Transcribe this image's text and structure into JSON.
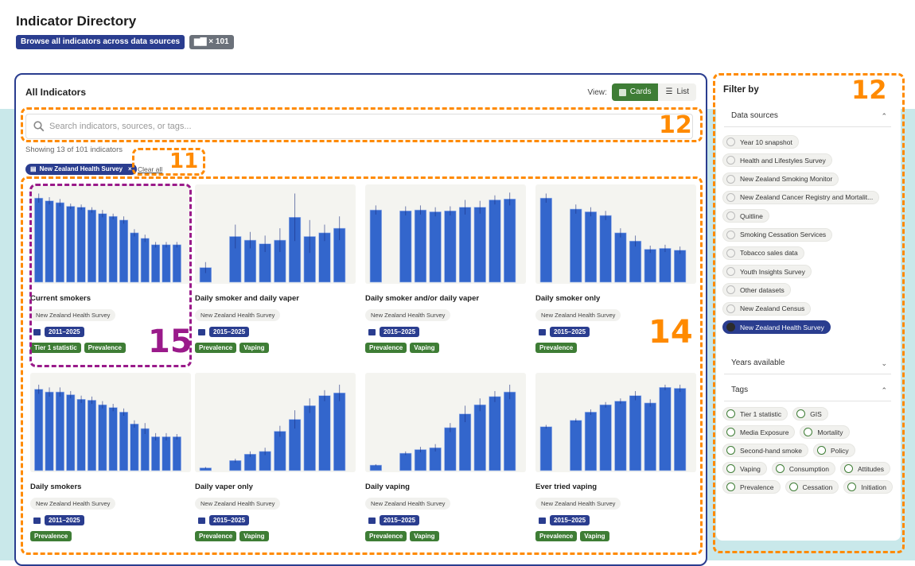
{
  "header": {
    "title": "Indicator Directory",
    "subtitle_badge": "Browse all indicators across data sources",
    "count_badge": "× 101",
    "count_icon": "bar-chart-icon"
  },
  "main": {
    "title": "All Indicators",
    "view_label": "View:",
    "view_cards": "Cards",
    "view_list": "List",
    "view_selected": "Cards",
    "search_placeholder": "Search indicators, sources, or tags...",
    "search_value": "",
    "showing": "Showing 13 of 101 indicators",
    "active_filter": "New Zealand Health Survey",
    "clear_all": "Clear all"
  },
  "cards": [
    {
      "title": "Current smokers",
      "source": "New Zealand Health Survey",
      "years": "2011–2025",
      "tags": [
        "Tier 1 statistic",
        "Prevalence"
      ]
    },
    {
      "title": "Daily smoker and daily vaper",
      "source": "New Zealand Health Survey",
      "years": "2015–2025",
      "tags": [
        "Prevalence",
        "Vaping"
      ]
    },
    {
      "title": "Daily smoker and/or daily vaper",
      "source": "New Zealand Health Survey",
      "years": "2015–2025",
      "tags": [
        "Prevalence",
        "Vaping"
      ]
    },
    {
      "title": "Daily smoker only",
      "source": "New Zealand Health Survey",
      "years": "2015–2025",
      "tags": [
        "Prevalence"
      ]
    },
    {
      "title": "Daily smokers",
      "source": "New Zealand Health Survey",
      "years": "2011–2025",
      "tags": [
        "Prevalence"
      ]
    },
    {
      "title": "Daily vaper only",
      "source": "New Zealand Health Survey",
      "years": "2015–2025",
      "tags": [
        "Prevalence",
        "Vaping"
      ]
    },
    {
      "title": "Daily vaping",
      "source": "New Zealand Health Survey",
      "years": "2015–2025",
      "tags": [
        "Prevalence",
        "Vaping"
      ]
    },
    {
      "title": "Ever tried vaping",
      "source": "New Zealand Health Survey",
      "years": "2015–2025",
      "tags": [
        "Prevalence",
        "Vaping"
      ]
    }
  ],
  "chart_data": [
    {
      "type": "bar",
      "bar_color": "#3366cc",
      "values": [
        92,
        89,
        87,
        83,
        82,
        79,
        75,
        72,
        68,
        54,
        48,
        41,
        41,
        41
      ],
      "errors": [
        5,
        4,
        4,
        3,
        3,
        3,
        4,
        3,
        4,
        4,
        4,
        3,
        3,
        3
      ]
    },
    {
      "type": "bar",
      "bar_color": "#3366cc",
      "values": [
        16,
        null,
        50,
        46,
        42,
        46,
        71,
        50,
        54,
        59
      ],
      "errors": [
        6,
        null,
        13,
        9,
        9,
        13,
        26,
        18,
        9,
        13
      ]
    },
    {
      "type": "bar",
      "bar_color": "#3366cc",
      "values": [
        79,
        null,
        78,
        79,
        77,
        78,
        82,
        82,
        90,
        91
      ],
      "errors": [
        5,
        null,
        5,
        5,
        5,
        5,
        8,
        7,
        5,
        7
      ]
    },
    {
      "type": "bar",
      "bar_color": "#3366cc",
      "values": [
        92,
        null,
        80,
        77,
        73,
        54,
        45,
        36,
        37,
        35
      ],
      "errors": [
        5,
        null,
        5,
        5,
        5,
        5,
        6,
        4,
        4,
        4
      ]
    },
    {
      "type": "bar",
      "bar_color": "#3366cc",
      "values": [
        89,
        86,
        86,
        83,
        78,
        77,
        72,
        69,
        64,
        51,
        46,
        37,
        37,
        37
      ],
      "errors": [
        5,
        5,
        5,
        4,
        4,
        4,
        4,
        4,
        4,
        4,
        6,
        4,
        4,
        3
      ]
    },
    {
      "type": "bar",
      "bar_color": "#3366cc",
      "values": [
        3,
        null,
        11,
        18,
        21,
        43,
        56,
        71,
        82,
        85
      ],
      "errors": [
        1,
        null,
        2,
        3,
        4,
        6,
        10,
        8,
        6,
        9
      ]
    },
    {
      "type": "bar",
      "bar_color": "#3366cc",
      "values": [
        6,
        null,
        19,
        23,
        25,
        47,
        62,
        72,
        81,
        86
      ],
      "errors": [
        1,
        null,
        2,
        3,
        4,
        5,
        9,
        7,
        6,
        8
      ]
    },
    {
      "type": "bar",
      "bar_color": "#3366cc",
      "values": [
        48,
        null,
        55,
        64,
        72,
        76,
        82,
        74,
        91,
        90
      ],
      "errors": [
        2,
        null,
        2,
        3,
        3,
        3,
        5,
        4,
        3,
        4
      ]
    }
  ],
  "sidebar": {
    "title": "Filter by",
    "data_sources_label": "Data sources",
    "years_label": "Years available",
    "tags_label": "Tags",
    "data_sources": [
      {
        "label": "Year 10 snapshot",
        "selected": false
      },
      {
        "label": "Health and Lifestyles Survey",
        "selected": false
      },
      {
        "label": "New Zealand Smoking Monitor",
        "selected": false
      },
      {
        "label": "New Zealand Cancer Registry and Mortalit...",
        "selected": false
      },
      {
        "label": "Quitline",
        "selected": false
      },
      {
        "label": "Smoking Cessation Services",
        "selected": false
      },
      {
        "label": "Tobacco sales data",
        "selected": false
      },
      {
        "label": "Youth Insights Survey",
        "selected": false
      },
      {
        "label": "Other datasets",
        "selected": false
      },
      {
        "label": "New Zealand Census",
        "selected": false
      },
      {
        "label": "New Zealand Health Survey",
        "selected": true
      }
    ],
    "tags": [
      "Tier 1 statistic",
      "GIS",
      "Media Exposure",
      "Mortality",
      "Second-hand smoke",
      "Policy",
      "Vaping",
      "Consumption",
      "Attitudes",
      "Prevalence",
      "Cessation",
      "Initiation"
    ]
  },
  "annotations": {
    "search": "12",
    "clear": "11",
    "grid": "14",
    "sidebar": "12",
    "first_card": "15"
  },
  "colors": {
    "primary": "#2a3d8f",
    "green": "#3e7d35",
    "band": "#c9e8ea",
    "bar": "#3366cc",
    "annotation_orange": "#ff8a00",
    "annotation_purple": "#9a1a8a"
  }
}
